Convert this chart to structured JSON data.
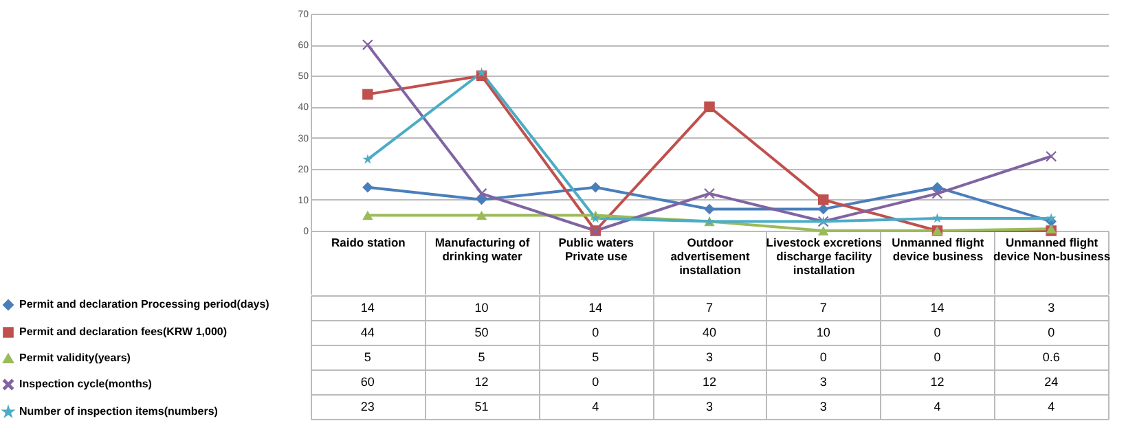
{
  "chart_data": {
    "type": "line",
    "categories": [
      "Raido station",
      "Manufacturing of drinking water",
      "Public waters Private use",
      "Outdoor advertisement installation",
      "Livestock excretions discharge facility installation",
      "Unmanned flight device business",
      "Unmanned flight device Non-business"
    ],
    "series": [
      {
        "name": "Permit and declaration Processing period(days)",
        "color": "#4a7ebb",
        "marker": "diamond",
        "values": [
          14,
          10,
          14,
          7,
          7,
          14,
          3
        ]
      },
      {
        "name": "Permit and declaration fees(KRW 1,000)",
        "color": "#c0504d",
        "marker": "square",
        "values": [
          44,
          50,
          0,
          40,
          10,
          0,
          0
        ]
      },
      {
        "name": "Permit validity(years)",
        "color": "#9bbb59",
        "marker": "triangle",
        "values": [
          5,
          5,
          5,
          3,
          0,
          0,
          0.6
        ]
      },
      {
        "name": "Inspection cycle(months)",
        "color": "#8064a2",
        "marker": "cross",
        "values": [
          60,
          12,
          0,
          12,
          3,
          12,
          24
        ]
      },
      {
        "name": "Number of inspection items(numbers)",
        "color": "#4bacc6",
        "marker": "star",
        "values": [
          23,
          51,
          4,
          3,
          3,
          4,
          4
        ]
      }
    ],
    "ylim": [
      0,
      70
    ],
    "yticks": [
      0,
      10,
      20,
      30,
      40,
      50,
      60,
      70
    ],
    "grid": "y",
    "data_labels": true,
    "legend": "bottom left"
  }
}
